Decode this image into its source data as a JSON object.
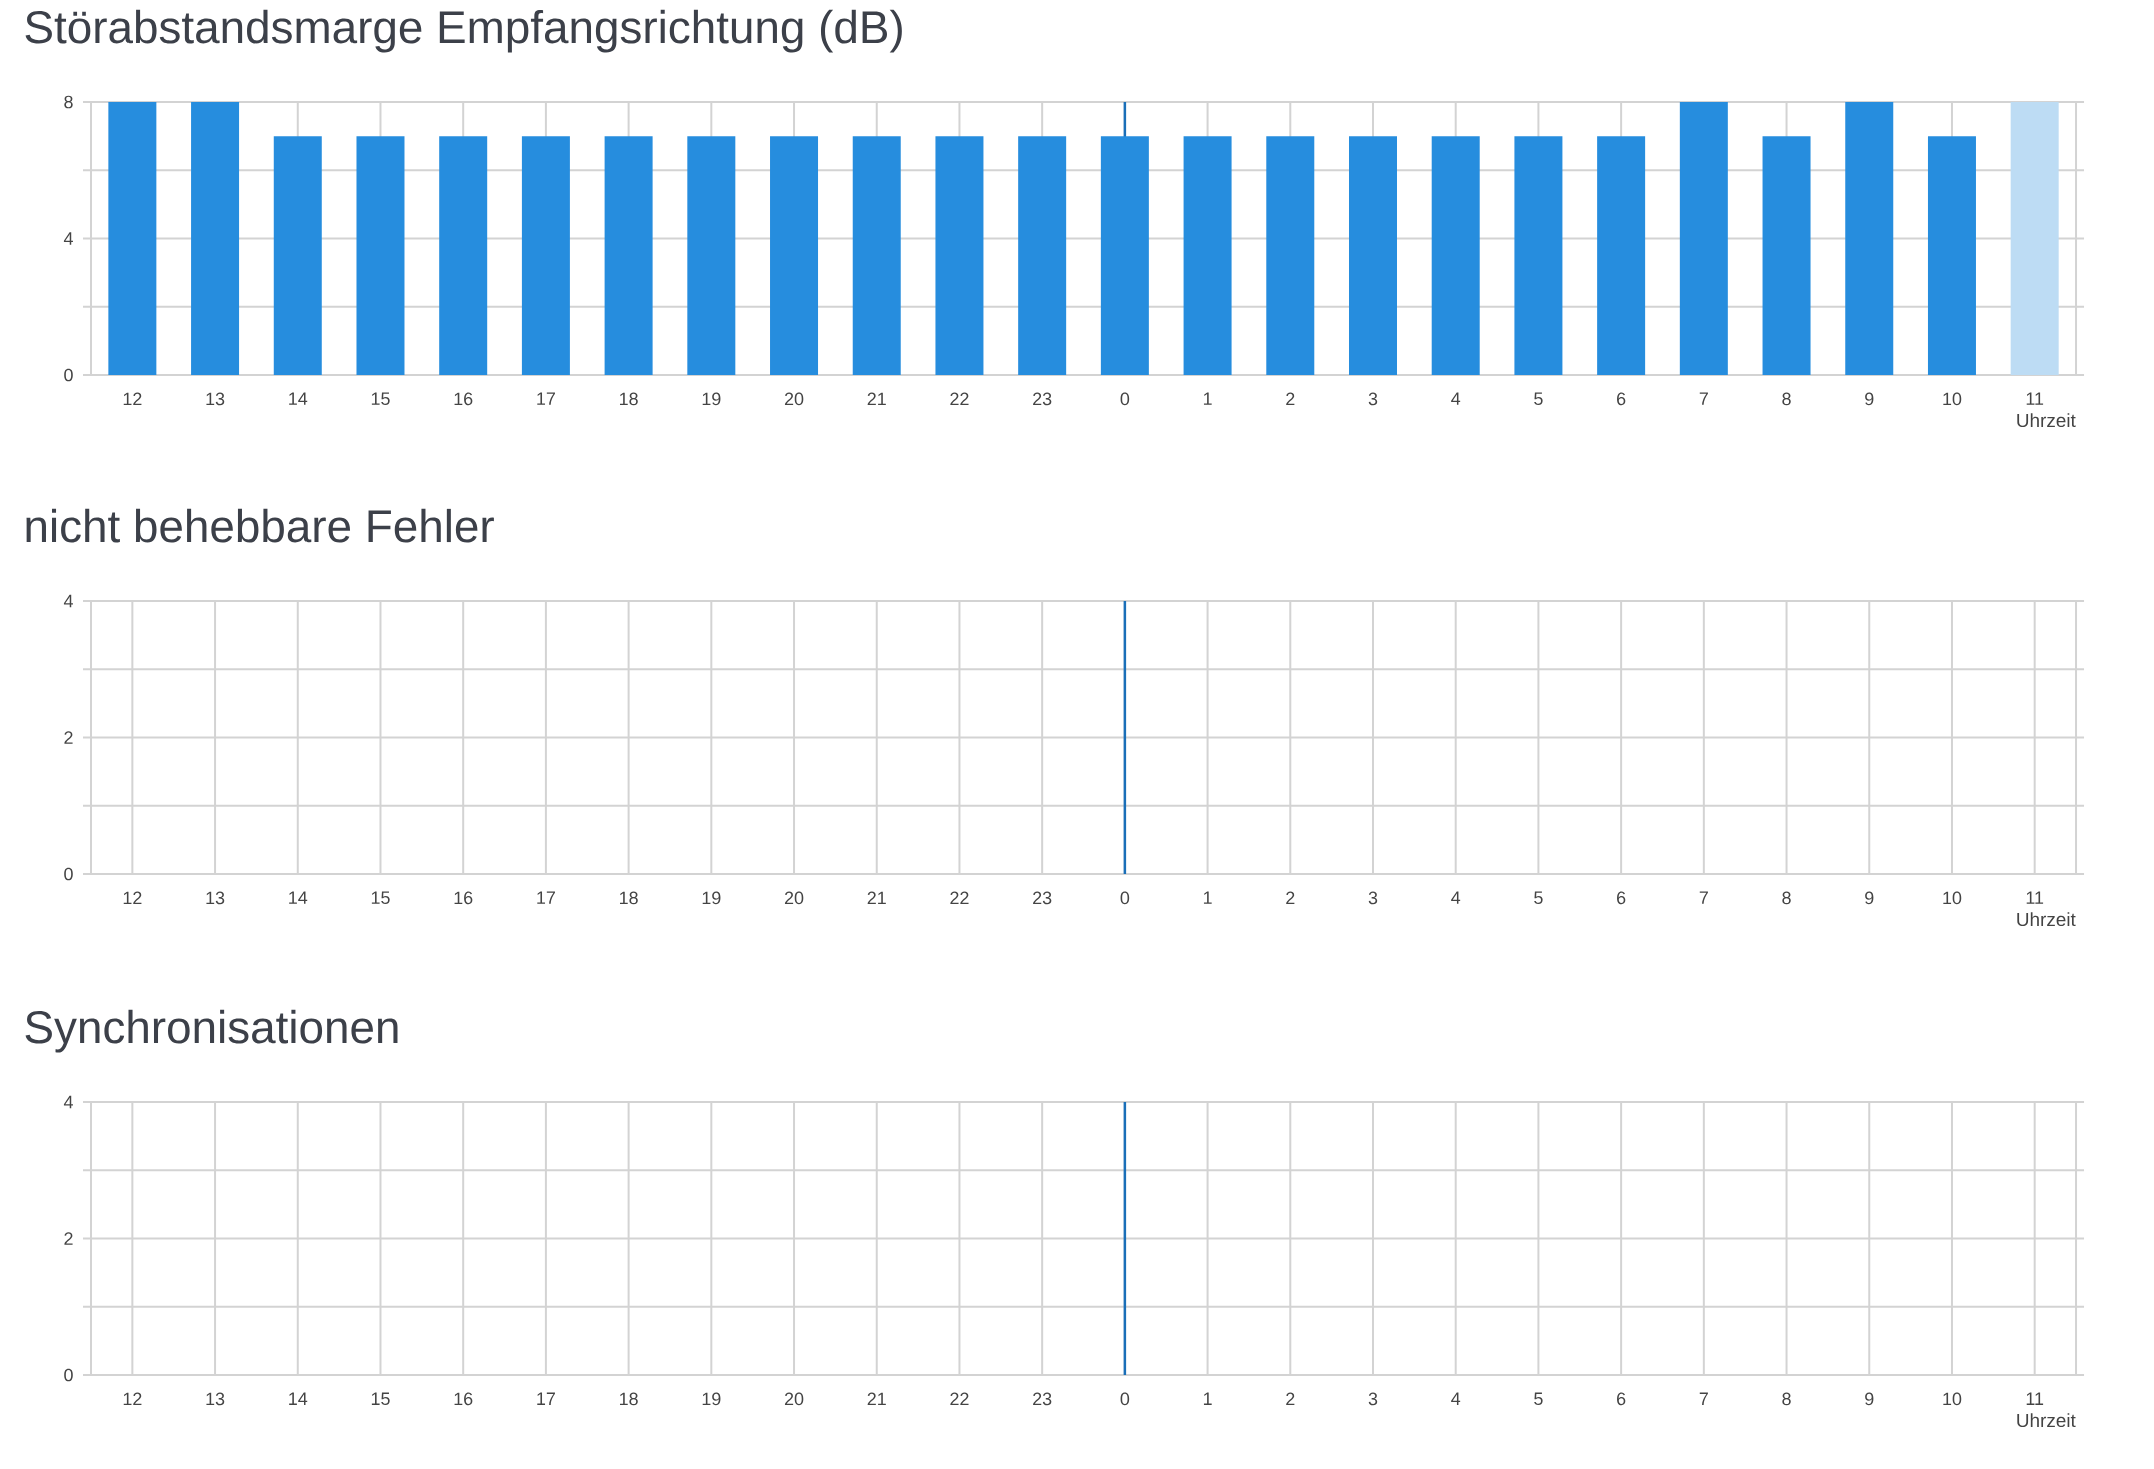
{
  "chart_data": [
    {
      "type": "bar",
      "title": "Störabstandsmarge Empfangsrichtung (dB)",
      "xlabel": "Uhrzeit",
      "categories": [
        "12",
        "13",
        "14",
        "15",
        "16",
        "17",
        "18",
        "19",
        "20",
        "21",
        "22",
        "23",
        "0",
        "1",
        "2",
        "3",
        "4",
        "5",
        "6",
        "7",
        "8",
        "9",
        "10",
        "11"
      ],
      "values": [
        8,
        8,
        7,
        7,
        7,
        7,
        7,
        7,
        7,
        7,
        7,
        7,
        7,
        7,
        7,
        7,
        7,
        7,
        7,
        8,
        7,
        8,
        7,
        8
      ],
      "colors": [
        "#268dde",
        "#268dde",
        "#268dde",
        "#268dde",
        "#268dde",
        "#268dde",
        "#268dde",
        "#268dde",
        "#268dde",
        "#268dde",
        "#268dde",
        "#268dde",
        "#268dde",
        "#268dde",
        "#268dde",
        "#268dde",
        "#268dde",
        "#268dde",
        "#268dde",
        "#268dde",
        "#268dde",
        "#268dde",
        "#268dde",
        "#bddcf4"
      ],
      "ylim": [
        0,
        8
      ],
      "yticks": [
        0,
        {
          "value": 2,
          "label": null
        },
        4,
        {
          "value": 6,
          "label": null
        },
        8
      ],
      "grid": true,
      "ref_lines": [
        {
          "axis": "x",
          "value": "0",
          "color": "#1a6fb8"
        }
      ]
    },
    {
      "type": "bar",
      "title": "nicht behebbare Fehler",
      "xlabel": "Uhrzeit",
      "categories": [
        "12",
        "13",
        "14",
        "15",
        "16",
        "17",
        "18",
        "19",
        "20",
        "21",
        "22",
        "23",
        "0",
        "1",
        "2",
        "3",
        "4",
        "5",
        "6",
        "7",
        "8",
        "9",
        "10",
        "11"
      ],
      "values": [
        0,
        0,
        0,
        0,
        0,
        0,
        0,
        0,
        0,
        0,
        0,
        0,
        0,
        0,
        0,
        0,
        0,
        0,
        0,
        0,
        0,
        0,
        0,
        0
      ],
      "ylim": [
        0,
        4
      ],
      "yticks": [
        0,
        {
          "value": 1,
          "label": null
        },
        2,
        {
          "value": 3,
          "label": null
        },
        4
      ],
      "grid": true,
      "ref_lines": [
        {
          "axis": "x",
          "value": "0",
          "color": "#1a6fb8"
        }
      ]
    },
    {
      "type": "bar",
      "title": "Synchronisationen",
      "xlabel": "Uhrzeit",
      "categories": [
        "12",
        "13",
        "14",
        "15",
        "16",
        "17",
        "18",
        "19",
        "20",
        "21",
        "22",
        "23",
        "0",
        "1",
        "2",
        "3",
        "4",
        "5",
        "6",
        "7",
        "8",
        "9",
        "10",
        "11"
      ],
      "values": [
        0,
        0,
        0,
        0,
        0,
        0,
        0,
        0,
        0,
        0,
        0,
        0,
        0,
        0,
        0,
        0,
        0,
        0,
        0,
        0,
        0,
        0,
        0,
        0
      ],
      "ylim": [
        0,
        4
      ],
      "yticks": [
        0,
        {
          "value": 1,
          "label": null
        },
        2,
        {
          "value": 3,
          "label": null
        },
        4
      ],
      "grid": true,
      "ref_lines": [
        {
          "axis": "x",
          "value": "0",
          "color": "#1a6fb8"
        }
      ]
    }
  ]
}
